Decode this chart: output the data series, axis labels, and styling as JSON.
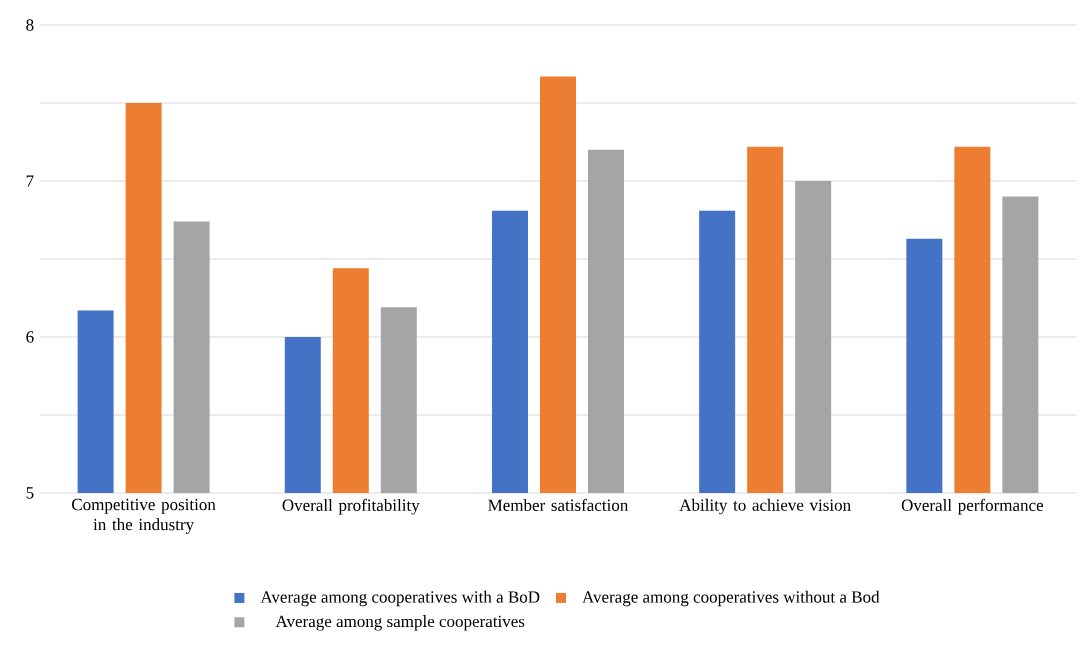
{
  "chart_data": {
    "type": "bar",
    "categories": [
      "Competitive position in the industry",
      "Overall profitability",
      "Member satisfaction",
      "Ability to achieve vision",
      "Overall performance"
    ],
    "series": [
      {
        "name": "Average among cooperatives with a BoD",
        "color": "#4472c4",
        "values": [
          6.17,
          6.0,
          6.81,
          6.81,
          6.63
        ]
      },
      {
        "name": "Average among cooperatives without a Bod",
        "color": "#ed7d31",
        "values": [
          7.5,
          6.44,
          7.67,
          7.22,
          7.22
        ]
      },
      {
        "name": "Average among sample cooperatives",
        "color": "#a5a5a5",
        "values": [
          6.74,
          6.19,
          7.2,
          7.0,
          6.9
        ]
      }
    ],
    "ylim": [
      5,
      8
    ],
    "yticks": [
      5,
      {
        "value": 5.5,
        "label": null
      },
      6,
      {
        "value": 6.5,
        "label": null
      },
      7,
      {
        "value": 7.5,
        "label": null
      },
      8
    ],
    "grid": "y",
    "legend": "bottom"
  }
}
